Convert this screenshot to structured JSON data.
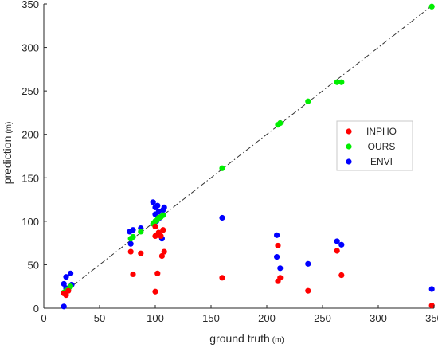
{
  "chart_data": {
    "type": "scatter",
    "xlabel": "ground truth",
    "xlabel_unit": "(m)",
    "ylabel": "prediction",
    "ylabel_unit": "(m)",
    "xlim": [
      0,
      350
    ],
    "ylim": [
      0,
      350
    ],
    "xticks": [
      "0",
      "50",
      "100",
      "150",
      "200",
      "250",
      "300",
      "350"
    ],
    "yticks": [
      "0",
      "50",
      "100",
      "150",
      "200",
      "250",
      "300",
      "350"
    ],
    "xtick_values": [
      0,
      50,
      100,
      150,
      200,
      250,
      300,
      350
    ],
    "ytick_values": [
      0,
      50,
      100,
      150,
      200,
      250,
      300,
      350
    ],
    "grid": false,
    "legend_position": "right",
    "reference_line": {
      "style": "dash-dot",
      "slope": 1
    },
    "series": [
      {
        "name": "INPHO",
        "color": "#ff0000",
        "points": [
          [
            18,
            17
          ],
          [
            20,
            15
          ],
          [
            22,
            20
          ],
          [
            78,
            65
          ],
          [
            80,
            39
          ],
          [
            87,
            63
          ],
          [
            100,
            19
          ],
          [
            100,
            94
          ],
          [
            100,
            83
          ],
          [
            102,
            40
          ],
          [
            103,
            87
          ],
          [
            105,
            83
          ],
          [
            106,
            60
          ],
          [
            107,
            90
          ],
          [
            108,
            65
          ],
          [
            160,
            35
          ],
          [
            210,
            72
          ],
          [
            210,
            31
          ],
          [
            212,
            35
          ],
          [
            237,
            20
          ],
          [
            263,
            66
          ],
          [
            267,
            38
          ],
          [
            348,
            3
          ]
        ]
      },
      {
        "name": "OURS",
        "color": "#00ee00",
        "points": [
          [
            18,
            18
          ],
          [
            20,
            20
          ],
          [
            22,
            22
          ],
          [
            24,
            25
          ],
          [
            78,
            80
          ],
          [
            80,
            82
          ],
          [
            87,
            88
          ],
          [
            98,
            97
          ],
          [
            100,
            100
          ],
          [
            102,
            102
          ],
          [
            103,
            104
          ],
          [
            105,
            105
          ],
          [
            107,
            107
          ],
          [
            160,
            161
          ],
          [
            210,
            211
          ],
          [
            212,
            213
          ],
          [
            237,
            238
          ],
          [
            263,
            260
          ],
          [
            267,
            260
          ],
          [
            348,
            347
          ]
        ]
      },
      {
        "name": "ENVI",
        "color": "#0000ff",
        "points": [
          [
            18,
            2
          ],
          [
            18,
            28
          ],
          [
            20,
            23
          ],
          [
            20,
            36
          ],
          [
            24,
            40
          ],
          [
            25,
            27
          ],
          [
            77,
            88
          ],
          [
            78,
            74
          ],
          [
            80,
            82
          ],
          [
            80,
            90
          ],
          [
            87,
            92
          ],
          [
            98,
            122
          ],
          [
            100,
            116
          ],
          [
            100,
            108
          ],
          [
            101,
            100
          ],
          [
            102,
            118
          ],
          [
            103,
            111
          ],
          [
            104,
            104
          ],
          [
            106,
            80
          ],
          [
            107,
            113
          ],
          [
            108,
            116
          ],
          [
            160,
            104
          ],
          [
            209,
            84
          ],
          [
            209,
            59
          ],
          [
            212,
            46
          ],
          [
            237,
            51
          ],
          [
            263,
            77
          ],
          [
            267,
            73
          ],
          [
            348,
            22
          ]
        ]
      }
    ]
  }
}
